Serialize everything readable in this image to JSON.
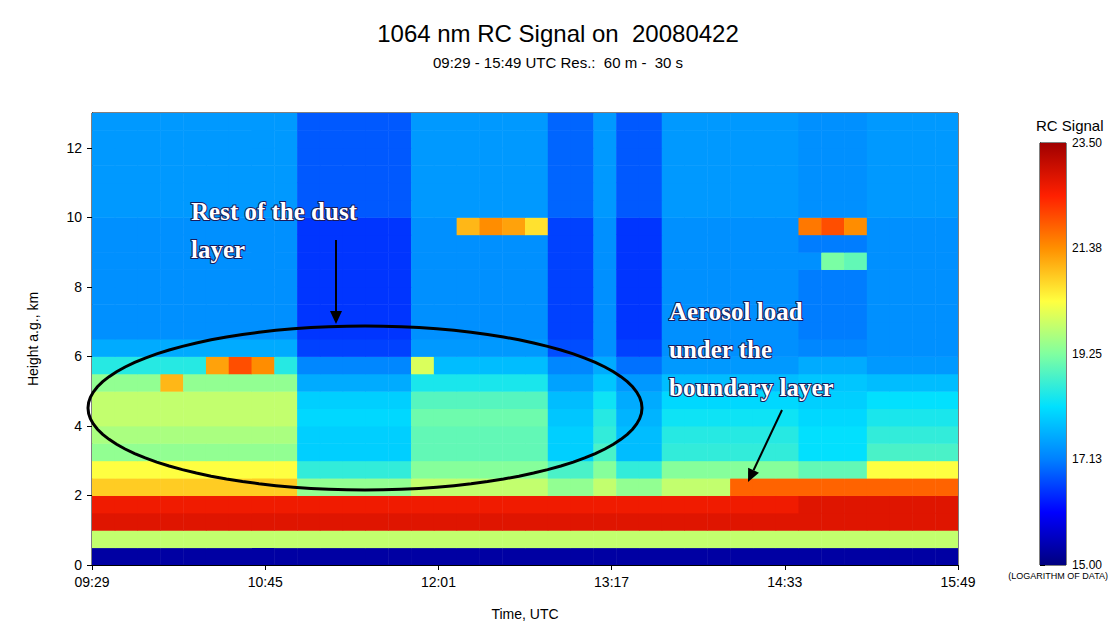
{
  "chart_data": {
    "type": "heatmap",
    "title": "1064 nm RC Signal on  20080422",
    "subtitle": "09:29 - 15:49 UTC Res.:  60 m -  30 s",
    "x_label": "Time, UTC",
    "y_label": "Height a.g., km",
    "grid": false,
    "xlim": [
      569,
      949
    ],
    "xticks": [
      {
        "value": 569,
        "label": "09:29"
      },
      {
        "value": 645,
        "label": "10:45"
      },
      {
        "value": 721,
        "label": "12:01"
      },
      {
        "value": 797,
        "label": "13:17"
      },
      {
        "value": 873,
        "label": "14:33"
      },
      {
        "value": 949,
        "label": "15:49"
      }
    ],
    "ylim": [
      0,
      13
    ],
    "yticks": [
      0,
      2,
      4,
      6,
      8,
      10,
      12
    ],
    "x_bins": [
      569,
      579,
      589,
      599,
      609,
      619,
      629,
      639,
      649,
      659,
      669,
      679,
      689,
      699,
      709,
      719,
      729,
      739,
      749,
      759,
      769,
      779,
      789,
      799,
      809,
      819,
      829,
      839,
      849,
      859,
      869,
      879,
      889,
      899,
      909,
      919,
      929,
      939,
      949
    ],
    "y_bins": [
      0,
      0.5,
      1,
      1.5,
      2,
      2.5,
      3,
      3.5,
      4,
      4.5,
      5,
      5.5,
      6,
      6.5,
      7,
      7.5,
      8,
      8.5,
      9,
      9.5,
      10,
      10.5,
      11,
      11.5,
      12,
      12.5,
      13
    ],
    "cells": [
      [
        15.3,
        15.3,
        15.3,
        15.3,
        15.3,
        15.3,
        15.3,
        15.3,
        15.3,
        15.3,
        15.3,
        15.3,
        15.3,
        15.3,
        15.3,
        15.3,
        15.3,
        15.3,
        15.3,
        15.3,
        15.3,
        15.3,
        15.3,
        15.3,
        15.3,
        15.3,
        15.3,
        15.3,
        15.3,
        15.3,
        15.3,
        15.3,
        15.3,
        15.3,
        15.3,
        15.3,
        15.3,
        15.3
      ],
      [
        19.8,
        19.8,
        19.8,
        19.8,
        19.8,
        19.8,
        19.8,
        19.8,
        19.8,
        19.8,
        19.8,
        19.8,
        19.8,
        19.8,
        19.8,
        19.8,
        19.8,
        19.8,
        19.8,
        19.8,
        19.8,
        19.8,
        19.8,
        19.8,
        19.8,
        19.8,
        19.8,
        19.8,
        19.8,
        19.8,
        19.8,
        19.8,
        19.8,
        19.8,
        19.8,
        19.8,
        19.8,
        19.8
      ],
      [
        22.8,
        22.8,
        22.8,
        22.8,
        22.8,
        22.8,
        22.8,
        22.8,
        22.8,
        22.8,
        22.8,
        22.8,
        22.8,
        22.8,
        22.8,
        22.8,
        22.8,
        22.8,
        22.8,
        22.8,
        22.8,
        22.8,
        22.8,
        22.8,
        22.8,
        22.8,
        22.8,
        22.8,
        22.8,
        22.8,
        22.8,
        22.8,
        22.8,
        22.8,
        22.8,
        22.8,
        22.8,
        22.8
      ],
      [
        22.6,
        22.6,
        22.6,
        22.6,
        22.6,
        22.6,
        22.6,
        22.6,
        22.6,
        22.6,
        22.6,
        22.6,
        22.6,
        22.6,
        22.6,
        22.6,
        22.6,
        22.6,
        22.6,
        22.6,
        22.6,
        22.6,
        22.6,
        22.6,
        22.6,
        22.6,
        22.6,
        22.6,
        22.6,
        22.6,
        22.6,
        22.8,
        22.8,
        22.8,
        22.8,
        22.8,
        22.8,
        22.8
      ],
      [
        20.8,
        20.8,
        20.8,
        20.8,
        20.8,
        20.8,
        20.8,
        20.8,
        20.8,
        19.4,
        19.4,
        19.4,
        19.4,
        19.4,
        19.8,
        19.8,
        19.8,
        19.8,
        19.8,
        19.8,
        19.4,
        19.4,
        19.8,
        19.4,
        19.4,
        19.8,
        19.8,
        19.8,
        21.8,
        21.8,
        21.8,
        21.8,
        21.8,
        21.8,
        21.8,
        21.8,
        21.8,
        21.8
      ],
      [
        20.3,
        20.3,
        20.3,
        20.3,
        20.3,
        20.3,
        20.3,
        20.3,
        20.3,
        18.6,
        18.6,
        18.6,
        18.6,
        18.6,
        19.3,
        19.3,
        19.3,
        19.3,
        19.3,
        19.3,
        18.8,
        18.8,
        19.3,
        18.6,
        18.6,
        19.3,
        19.3,
        19.3,
        19.3,
        19.3,
        19.3,
        19.0,
        19.0,
        19.0,
        20.3,
        20.3,
        20.3,
        20.3
      ],
      [
        19.4,
        19.4,
        19.4,
        19.4,
        19.4,
        19.4,
        19.4,
        19.4,
        19.4,
        18.0,
        18.0,
        18.0,
        18.0,
        18.0,
        19.0,
        19.0,
        19.0,
        19.0,
        19.0,
        19.0,
        18.0,
        18.0,
        18.8,
        17.8,
        17.8,
        18.6,
        18.6,
        18.6,
        18.6,
        18.6,
        18.6,
        18.2,
        18.2,
        18.2,
        18.8,
        18.8,
        18.8,
        18.8
      ],
      [
        19.6,
        19.6,
        19.6,
        19.6,
        19.6,
        19.6,
        19.6,
        19.6,
        19.6,
        18.0,
        18.0,
        18.0,
        18.0,
        18.0,
        19.0,
        19.0,
        19.0,
        19.0,
        19.0,
        19.0,
        18.0,
        18.0,
        18.6,
        17.8,
        17.8,
        18.5,
        18.5,
        18.5,
        18.5,
        18.5,
        18.5,
        18.2,
        18.2,
        18.2,
        18.6,
        18.6,
        18.6,
        18.6
      ],
      [
        19.8,
        19.8,
        19.8,
        19.8,
        19.8,
        19.8,
        19.8,
        19.8,
        19.8,
        18.1,
        18.1,
        18.1,
        18.1,
        18.1,
        19.1,
        19.1,
        19.1,
        19.1,
        19.1,
        19.1,
        17.9,
        17.9,
        18.5,
        17.7,
        17.7,
        18.3,
        18.3,
        18.3,
        18.3,
        18.3,
        18.3,
        18.1,
        18.1,
        18.1,
        18.4,
        18.4,
        18.4,
        18.4
      ],
      [
        19.8,
        19.8,
        19.8,
        19.8,
        19.8,
        19.8,
        19.8,
        19.8,
        19.8,
        18.0,
        18.0,
        18.0,
        18.0,
        18.0,
        18.9,
        18.9,
        18.9,
        18.9,
        18.9,
        18.9,
        17.8,
        17.8,
        18.3,
        17.6,
        17.6,
        18.1,
        18.1,
        18.1,
        18.1,
        18.1,
        18.1,
        18.0,
        18.0,
        18.0,
        18.2,
        18.2,
        18.2,
        18.2
      ],
      [
        19.4,
        19.4,
        19.4,
        21.0,
        19.4,
        19.4,
        19.4,
        19.4,
        19.4,
        17.6,
        17.6,
        17.6,
        17.6,
        17.6,
        18.4,
        18.4,
        18.4,
        18.4,
        18.4,
        18.4,
        17.5,
        17.5,
        17.9,
        17.4,
        17.4,
        17.8,
        17.8,
        17.8,
        17.8,
        17.8,
        17.8,
        17.9,
        17.9,
        17.9,
        17.8,
        17.8,
        17.8,
        17.8
      ],
      [
        18.5,
        18.5,
        18.5,
        18.5,
        18.5,
        21.2,
        22.0,
        21.4,
        18.5,
        17.2,
        17.2,
        17.2,
        17.2,
        17.2,
        20.0,
        17.8,
        17.8,
        17.8,
        17.8,
        17.8,
        17.2,
        17.2,
        17.6,
        17.0,
        17.0,
        17.4,
        17.4,
        17.4,
        17.4,
        17.4,
        17.4,
        17.6,
        17.6,
        17.6,
        17.4,
        17.4,
        17.4,
        17.4
      ],
      [
        17.6,
        17.6,
        17.6,
        17.6,
        17.6,
        17.6,
        17.6,
        17.6,
        17.6,
        16.6,
        16.6,
        16.6,
        16.6,
        16.6,
        17.4,
        17.4,
        17.4,
        17.4,
        17.4,
        17.4,
        16.7,
        16.7,
        17.3,
        16.6,
        16.6,
        17.3,
        17.3,
        17.3,
        17.3,
        17.3,
        17.3,
        17.2,
        17.2,
        17.2,
        17.3,
        17.3,
        17.3,
        17.3
      ],
      [
        17.3,
        17.3,
        17.3,
        17.3,
        17.3,
        17.3,
        17.3,
        17.3,
        17.3,
        16.5,
        16.5,
        16.5,
        16.5,
        16.5,
        17.3,
        17.3,
        17.3,
        17.3,
        17.3,
        17.3,
        16.6,
        16.6,
        17.3,
        16.5,
        16.5,
        17.3,
        17.3,
        17.3,
        17.3,
        17.3,
        17.3,
        17.1,
        17.1,
        17.1,
        17.3,
        17.3,
        17.3,
        17.3
      ],
      [
        17.3,
        17.3,
        17.3,
        17.3,
        17.3,
        17.3,
        17.3,
        17.3,
        17.3,
        16.5,
        16.5,
        16.5,
        16.5,
        16.5,
        17.3,
        17.3,
        17.3,
        17.3,
        17.3,
        17.3,
        16.6,
        16.6,
        17.3,
        16.5,
        16.5,
        17.3,
        17.3,
        17.3,
        17.3,
        17.3,
        17.3,
        17.1,
        17.1,
        17.1,
        17.3,
        17.3,
        17.3,
        17.3
      ],
      [
        17.3,
        17.3,
        17.3,
        17.3,
        17.3,
        17.3,
        17.3,
        17.3,
        17.3,
        16.5,
        16.5,
        16.5,
        16.5,
        16.5,
        17.3,
        17.3,
        17.3,
        17.3,
        17.3,
        17.3,
        16.6,
        16.6,
        17.3,
        16.5,
        16.5,
        17.3,
        17.3,
        17.3,
        17.3,
        17.3,
        17.3,
        17.1,
        17.1,
        17.1,
        17.3,
        17.3,
        17.3,
        17.3
      ],
      [
        17.3,
        17.3,
        17.3,
        17.3,
        17.3,
        17.3,
        17.3,
        17.3,
        17.3,
        16.5,
        16.5,
        16.5,
        16.5,
        16.5,
        17.3,
        17.3,
        17.3,
        17.3,
        17.3,
        17.3,
        16.6,
        16.6,
        17.3,
        16.5,
        16.5,
        17.3,
        17.3,
        17.3,
        17.3,
        17.3,
        17.3,
        17.1,
        17.1,
        17.1,
        17.3,
        17.3,
        17.3,
        17.3
      ],
      [
        17.3,
        17.3,
        17.3,
        17.3,
        17.3,
        17.3,
        17.3,
        17.3,
        17.3,
        16.5,
        16.5,
        16.5,
        16.5,
        16.5,
        17.3,
        17.3,
        17.3,
        17.3,
        17.3,
        17.3,
        16.6,
        16.6,
        17.3,
        16.5,
        16.5,
        17.3,
        17.3,
        17.3,
        17.3,
        17.3,
        17.3,
        17.3,
        19.2,
        19.0,
        17.3,
        17.3,
        17.3,
        17.3
      ],
      [
        17.3,
        17.3,
        17.3,
        17.3,
        17.3,
        17.3,
        17.3,
        17.3,
        17.3,
        16.5,
        16.5,
        16.5,
        16.5,
        16.5,
        17.3,
        17.3,
        17.3,
        17.3,
        17.3,
        17.3,
        16.6,
        16.6,
        17.3,
        16.5,
        16.5,
        17.3,
        17.3,
        17.3,
        17.3,
        17.3,
        17.3,
        17.1,
        17.1,
        17.1,
        17.3,
        17.3,
        17.3,
        17.3
      ],
      [
        17.3,
        17.3,
        17.3,
        17.3,
        17.3,
        17.3,
        17.3,
        17.3,
        17.3,
        16.5,
        16.5,
        16.5,
        16.5,
        16.5,
        17.3,
        17.3,
        21.0,
        21.4,
        21.2,
        20.6,
        16.6,
        16.6,
        17.3,
        16.5,
        16.5,
        17.3,
        17.3,
        17.3,
        17.3,
        17.3,
        17.3,
        21.6,
        22.0,
        21.4,
        17.3,
        17.3,
        17.3,
        17.3
      ],
      [
        17.4,
        17.4,
        17.4,
        17.4,
        17.4,
        17.4,
        17.4,
        17.4,
        17.4,
        16.8,
        16.8,
        16.8,
        16.8,
        16.8,
        17.4,
        17.4,
        17.4,
        17.4,
        17.4,
        17.4,
        16.9,
        16.9,
        17.4,
        16.8,
        16.8,
        17.4,
        17.4,
        17.4,
        17.4,
        17.4,
        17.4,
        17.3,
        17.3,
        17.3,
        17.4,
        17.4,
        17.4,
        17.4
      ],
      [
        17.4,
        17.4,
        17.4,
        17.4,
        17.4,
        17.4,
        17.4,
        17.4,
        17.4,
        16.8,
        16.8,
        16.8,
        16.8,
        16.8,
        17.4,
        17.4,
        17.4,
        17.4,
        17.4,
        17.4,
        16.9,
        16.9,
        17.4,
        16.8,
        16.8,
        17.4,
        17.4,
        17.4,
        17.4,
        17.4,
        17.4,
        17.3,
        17.3,
        17.3,
        17.4,
        17.4,
        17.4,
        17.4
      ],
      [
        17.4,
        17.4,
        17.4,
        17.4,
        17.4,
        17.4,
        17.4,
        17.4,
        17.4,
        16.8,
        16.8,
        16.8,
        16.8,
        16.8,
        17.4,
        17.4,
        17.4,
        17.4,
        17.4,
        17.4,
        16.9,
        16.9,
        17.4,
        16.8,
        16.8,
        17.4,
        17.4,
        17.4,
        17.4,
        17.4,
        17.4,
        17.3,
        17.3,
        17.3,
        17.4,
        17.4,
        17.4,
        17.4
      ],
      [
        17.4,
        17.4,
        17.4,
        17.4,
        17.4,
        17.4,
        17.4,
        17.4,
        17.4,
        16.8,
        16.8,
        16.8,
        16.8,
        16.8,
        17.4,
        17.4,
        17.4,
        17.4,
        17.4,
        17.4,
        16.9,
        16.9,
        17.4,
        16.8,
        16.8,
        17.4,
        17.4,
        17.4,
        17.4,
        17.4,
        17.4,
        17.3,
        17.3,
        17.3,
        17.4,
        17.4,
        17.4,
        17.4
      ],
      [
        17.4,
        17.4,
        17.4,
        17.4,
        17.4,
        17.4,
        17.4,
        17.4,
        17.4,
        16.8,
        16.8,
        16.8,
        16.8,
        16.8,
        17.4,
        17.4,
        17.4,
        17.4,
        17.4,
        17.4,
        16.9,
        16.9,
        17.4,
        16.8,
        16.8,
        17.4,
        17.4,
        17.4,
        17.4,
        17.4,
        17.4,
        17.3,
        17.3,
        17.3,
        17.4,
        17.4,
        17.4,
        17.4
      ],
      [
        17.4,
        17.4,
        17.4,
        17.4,
        17.4,
        17.4,
        17.4,
        17.4,
        17.4,
        16.8,
        16.8,
        16.8,
        16.8,
        16.8,
        17.4,
        17.4,
        17.4,
        17.4,
        17.4,
        17.4,
        16.9,
        16.9,
        17.4,
        16.8,
        16.8,
        17.4,
        17.4,
        17.4,
        17.4,
        17.4,
        17.4,
        17.3,
        17.3,
        17.3,
        17.4,
        17.4,
        17.4,
        17.4
      ]
    ],
    "colorbar": {
      "title": "RC Signal",
      "note": "(LOGARITHM OF DATA)",
      "range": [
        15,
        23.5
      ],
      "ticks": [
        {
          "value": 15,
          "label": "15.00"
        },
        17.13,
        19.25,
        21.38,
        {
          "value": 23.5,
          "label": "23.50"
        }
      ]
    },
    "annotations": [
      {
        "lines": [
          "Rest of the dust",
          "layer"
        ]
      },
      {
        "lines": [
          "Aerosol load",
          "under the",
          "boundary layer"
        ]
      }
    ]
  }
}
